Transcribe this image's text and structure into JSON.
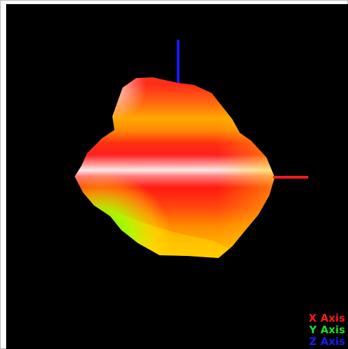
{
  "viewer": {
    "background_color": "#000000",
    "frame_color": "#b8b8b8"
  },
  "axes": [
    {
      "label": "X Axis",
      "color": "#ff1a1a"
    },
    {
      "label": "Y Axis",
      "color": "#22dd22"
    },
    {
      "label": "Z Axis",
      "color": "#1a1aff"
    }
  ],
  "surface": {
    "colormap": [
      "#ffffff",
      "#ff0000",
      "#ff8800",
      "#ffff00",
      "#00ff00"
    ]
  }
}
